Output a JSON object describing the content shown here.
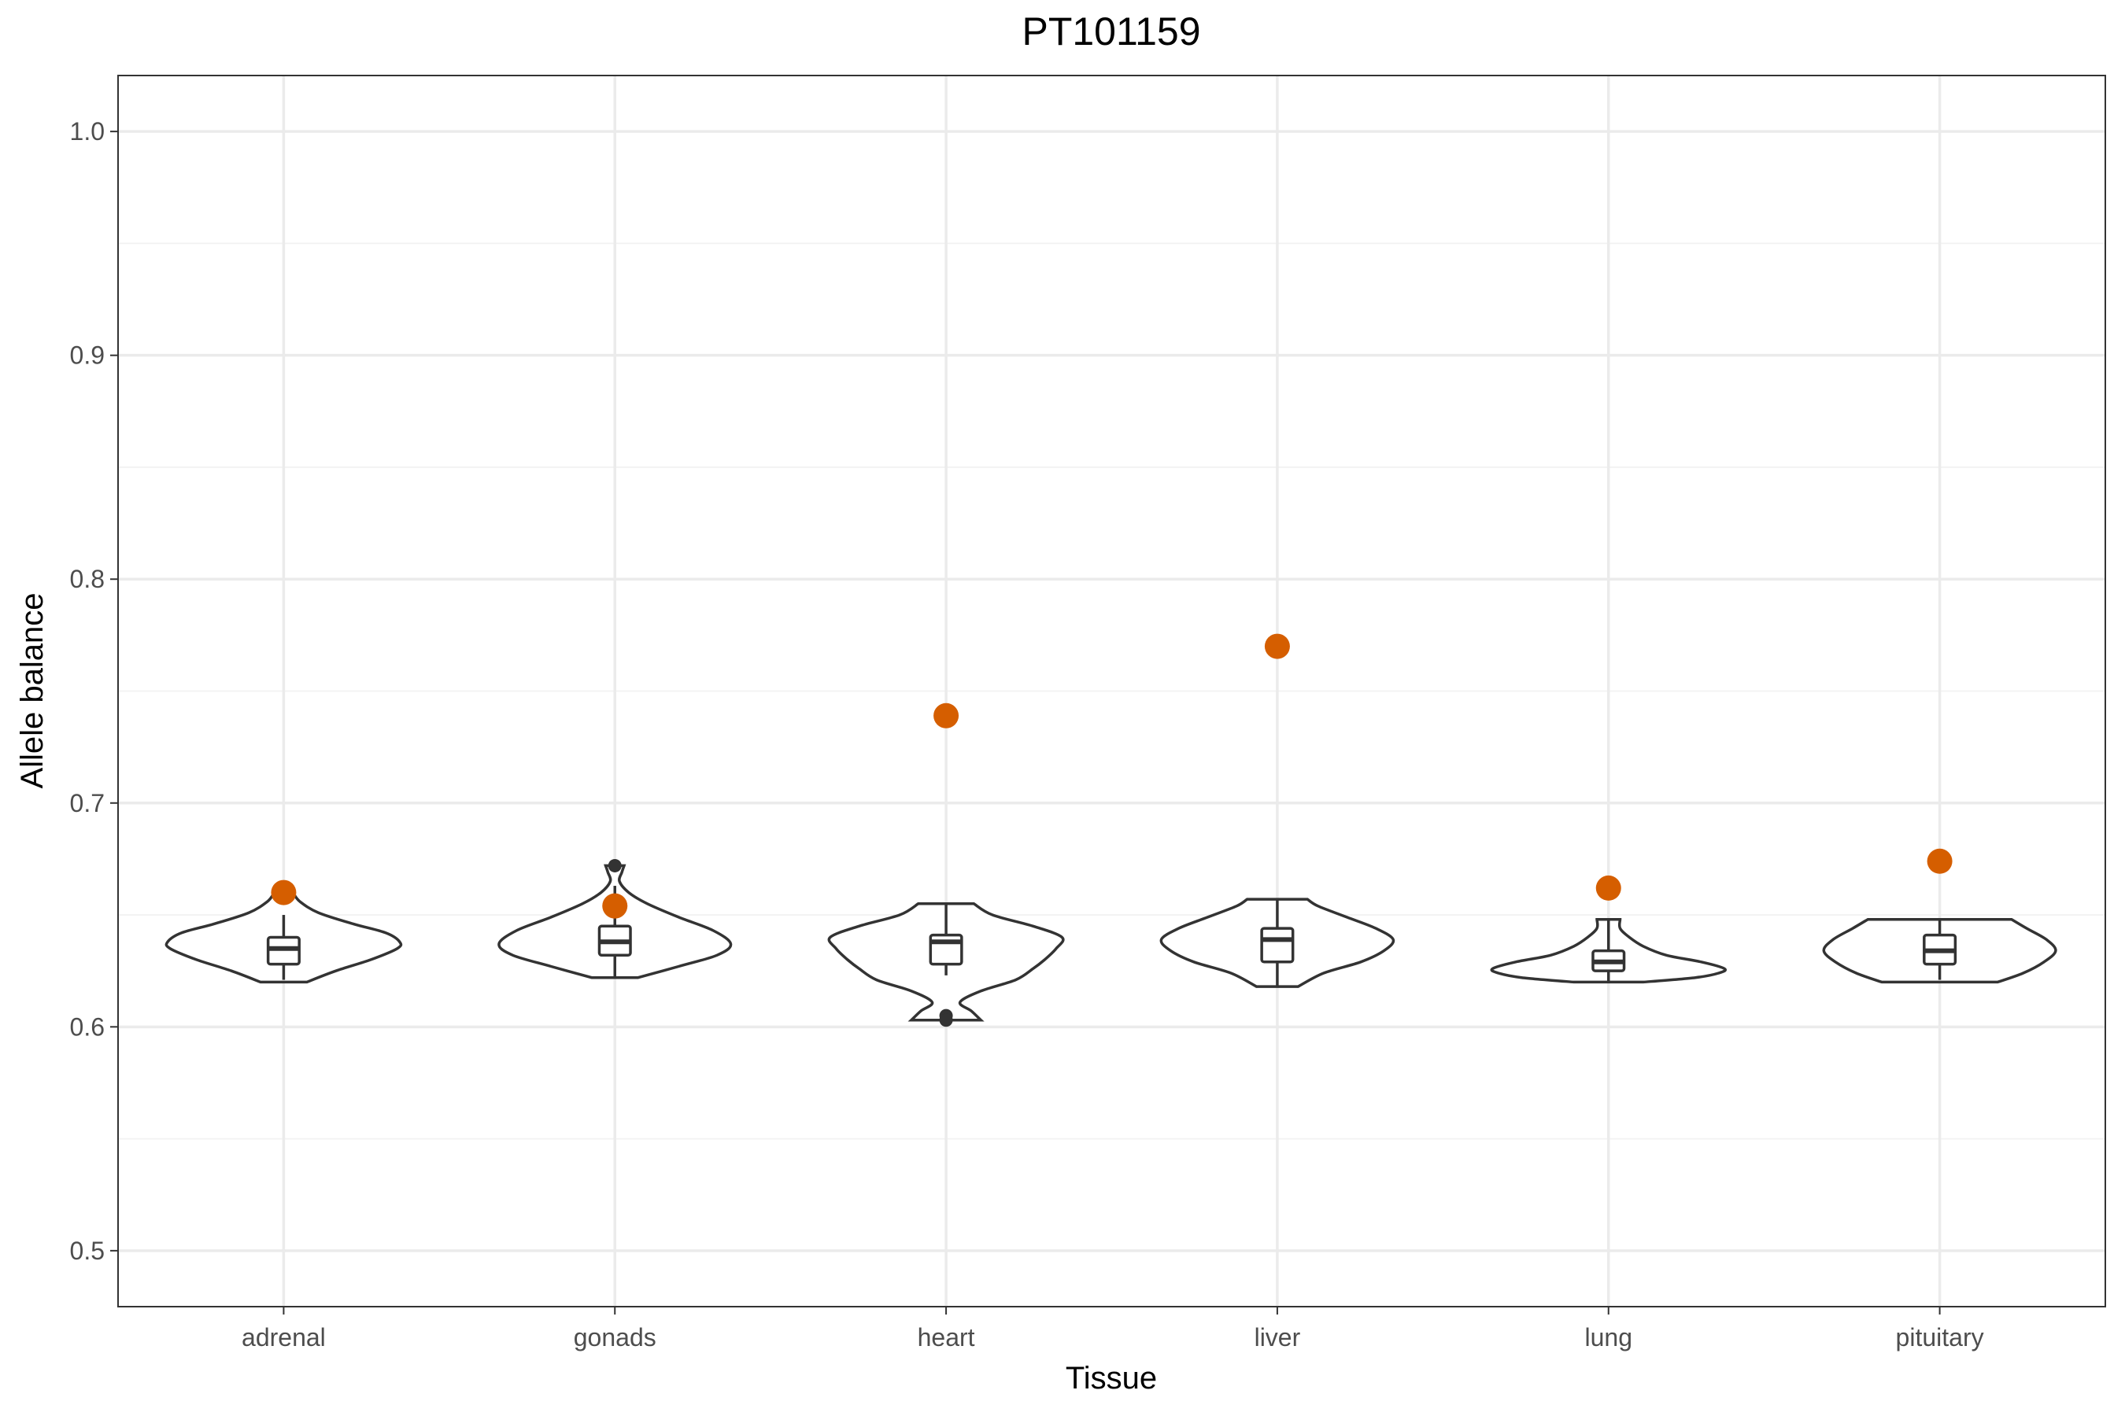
{
  "chart_data": {
    "type": "violin",
    "title": "PT101159",
    "xlabel": "Tissue",
    "ylabel": "Allele balance",
    "ylim": [
      0.475,
      1.025
    ],
    "yticks": [
      0.5,
      0.6,
      0.7,
      0.8,
      0.9,
      1.0
    ],
    "ytick_labels": [
      "0.5",
      "0.6",
      "0.7",
      "0.8",
      "0.9",
      "1.0"
    ],
    "grid": true,
    "highlight_color": "#D55E00",
    "categories": [
      "adrenal",
      "gonads",
      "heart",
      "liver",
      "lung",
      "pituitary"
    ],
    "violins": [
      {
        "tissue": "adrenal",
        "box": {
          "q1": 0.628,
          "median": 0.635,
          "q3": 0.64,
          "whisker_low": 0.621,
          "whisker_high": 0.65
        },
        "outliers": [],
        "highlight": 0.66,
        "density": [
          [
            0.62,
            0.2
          ],
          [
            0.625,
            0.45
          ],
          [
            0.63,
            0.75
          ],
          [
            0.635,
            0.98
          ],
          [
            0.638,
            1.0
          ],
          [
            0.642,
            0.88
          ],
          [
            0.646,
            0.6
          ],
          [
            0.651,
            0.3
          ],
          [
            0.656,
            0.14
          ],
          [
            0.66,
            0.08
          ]
        ]
      },
      {
        "tissue": "gonads",
        "box": {
          "q1": 0.632,
          "median": 0.638,
          "q3": 0.645,
          "whisker_low": 0.622,
          "whisker_high": 0.663
        },
        "outliers": [
          0.672
        ],
        "highlight": 0.654,
        "density": [
          [
            0.622,
            0.2
          ],
          [
            0.627,
            0.55
          ],
          [
            0.632,
            0.88
          ],
          [
            0.637,
            1.0
          ],
          [
            0.643,
            0.85
          ],
          [
            0.649,
            0.55
          ],
          [
            0.655,
            0.28
          ],
          [
            0.66,
            0.12
          ],
          [
            0.665,
            0.04
          ],
          [
            0.669,
            0.06
          ],
          [
            0.672,
            0.08
          ]
        ]
      },
      {
        "tissue": "heart",
        "box": {
          "q1": 0.628,
          "median": 0.638,
          "q3": 0.641,
          "whisker_low": 0.623,
          "whisker_high": 0.655
        },
        "outliers": [
          0.605,
          0.603
        ],
        "highlight": 0.739,
        "density": [
          [
            0.603,
            0.3
          ],
          [
            0.607,
            0.22
          ],
          [
            0.611,
            0.12
          ],
          [
            0.616,
            0.3
          ],
          [
            0.621,
            0.6
          ],
          [
            0.626,
            0.75
          ],
          [
            0.63,
            0.85
          ],
          [
            0.635,
            0.95
          ],
          [
            0.64,
            1.0
          ],
          [
            0.645,
            0.75
          ],
          [
            0.65,
            0.4
          ],
          [
            0.655,
            0.24
          ]
        ]
      },
      {
        "tissue": "liver",
        "box": {
          "q1": 0.629,
          "median": 0.639,
          "q3": 0.644,
          "whisker_low": 0.618,
          "whisker_high": 0.657
        },
        "outliers": [],
        "highlight": 0.77,
        "density": [
          [
            0.618,
            0.18
          ],
          [
            0.624,
            0.4
          ],
          [
            0.629,
            0.72
          ],
          [
            0.634,
            0.92
          ],
          [
            0.639,
            1.0
          ],
          [
            0.644,
            0.85
          ],
          [
            0.649,
            0.6
          ],
          [
            0.654,
            0.35
          ],
          [
            0.657,
            0.26
          ]
        ]
      },
      {
        "tissue": "lung",
        "box": {
          "q1": 0.625,
          "median": 0.629,
          "q3": 0.634,
          "whisker_low": 0.62,
          "whisker_high": 0.648
        },
        "outliers": [],
        "highlight": 0.662,
        "density": [
          [
            0.62,
            0.3
          ],
          [
            0.622,
            0.75
          ],
          [
            0.624,
            0.95
          ],
          [
            0.626,
            1.0
          ],
          [
            0.629,
            0.8
          ],
          [
            0.632,
            0.5
          ],
          [
            0.636,
            0.3
          ],
          [
            0.64,
            0.18
          ],
          [
            0.644,
            0.1
          ],
          [
            0.648,
            0.1
          ]
        ]
      },
      {
        "tissue": "pituitary",
        "box": {
          "q1": 0.628,
          "median": 0.634,
          "q3": 0.641,
          "whisker_low": 0.621,
          "whisker_high": 0.648
        },
        "outliers": [],
        "highlight": 0.674,
        "density": [
          [
            0.62,
            0.5
          ],
          [
            0.624,
            0.72
          ],
          [
            0.629,
            0.9
          ],
          [
            0.634,
            1.0
          ],
          [
            0.639,
            0.92
          ],
          [
            0.644,
            0.75
          ],
          [
            0.648,
            0.62
          ]
        ]
      }
    ]
  }
}
